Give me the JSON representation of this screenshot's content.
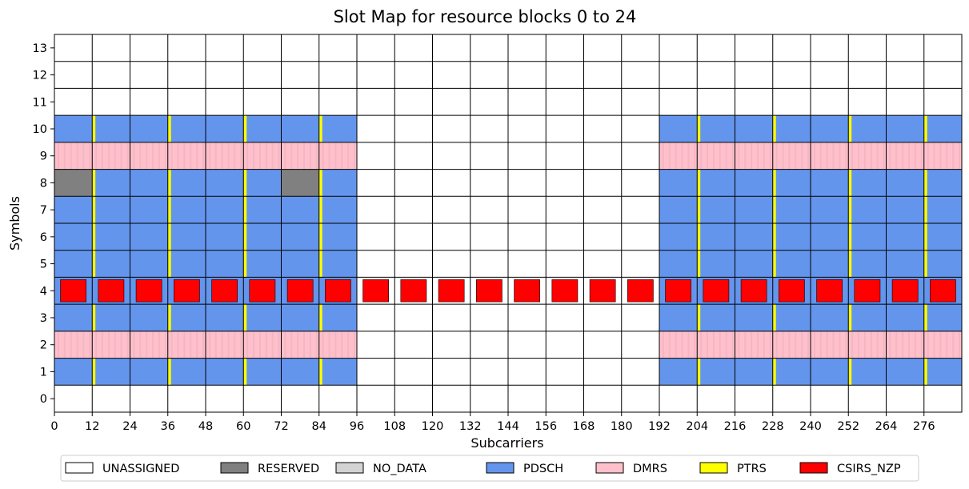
{
  "chart_data": {
    "type": "heatmap",
    "title": "Slot Map for resource blocks 0 to 24",
    "xlabel": "Subcarriers",
    "ylabel": "Symbols",
    "x_ticks": [
      "0",
      "12",
      "24",
      "36",
      "48",
      "60",
      "72",
      "84",
      "96",
      "108",
      "120",
      "132",
      "144",
      "156",
      "168",
      "180",
      "192",
      "204",
      "216",
      "228",
      "240",
      "252",
      "264",
      "276"
    ],
    "y_ticks": [
      "0",
      "1",
      "2",
      "3",
      "4",
      "5",
      "6",
      "7",
      "8",
      "9",
      "10",
      "11",
      "12",
      "13"
    ],
    "xlim": [
      0,
      288
    ],
    "ylim": [
      -0.5,
      13.5
    ],
    "categories": [
      "UNASSIGNED",
      "RESERVED",
      "NO_DATA",
      "PDSCH",
      "DMRS",
      "PTRS",
      "CSIRS_NZP"
    ],
    "colors": {
      "UNASSIGNED": "#ffffff",
      "RESERVED": "#808080",
      "NO_DATA": "#d3d3d3",
      "PDSCH": "#6495ed",
      "DMRS": "#ffc0cb",
      "PTRS": "#ffff00",
      "CSIRS_NZP": "#ff0000"
    },
    "resource_blocks": 24,
    "subcarriers_per_block": 12,
    "pdsch_blocks": [
      0,
      1,
      2,
      3,
      4,
      5,
      6,
      7,
      16,
      17,
      18,
      19,
      20,
      21,
      22,
      23
    ],
    "pdsch_symbols": [
      1,
      2,
      3,
      5,
      6,
      7,
      8,
      9,
      10
    ],
    "dmrs_symbols": [
      2,
      9
    ],
    "reserved": [
      {
        "symbol": 8,
        "blocks": [
          0,
          6
        ]
      }
    ],
    "ptrs_subcarrier_offset": 0,
    "ptrs_block_step": 2,
    "ptrs_symbols": [
      1,
      3,
      5,
      6,
      7,
      8,
      10
    ],
    "csirs_symbol": 4,
    "csirs_blocks": "all",
    "grid": true,
    "legend_position": "bottom"
  }
}
